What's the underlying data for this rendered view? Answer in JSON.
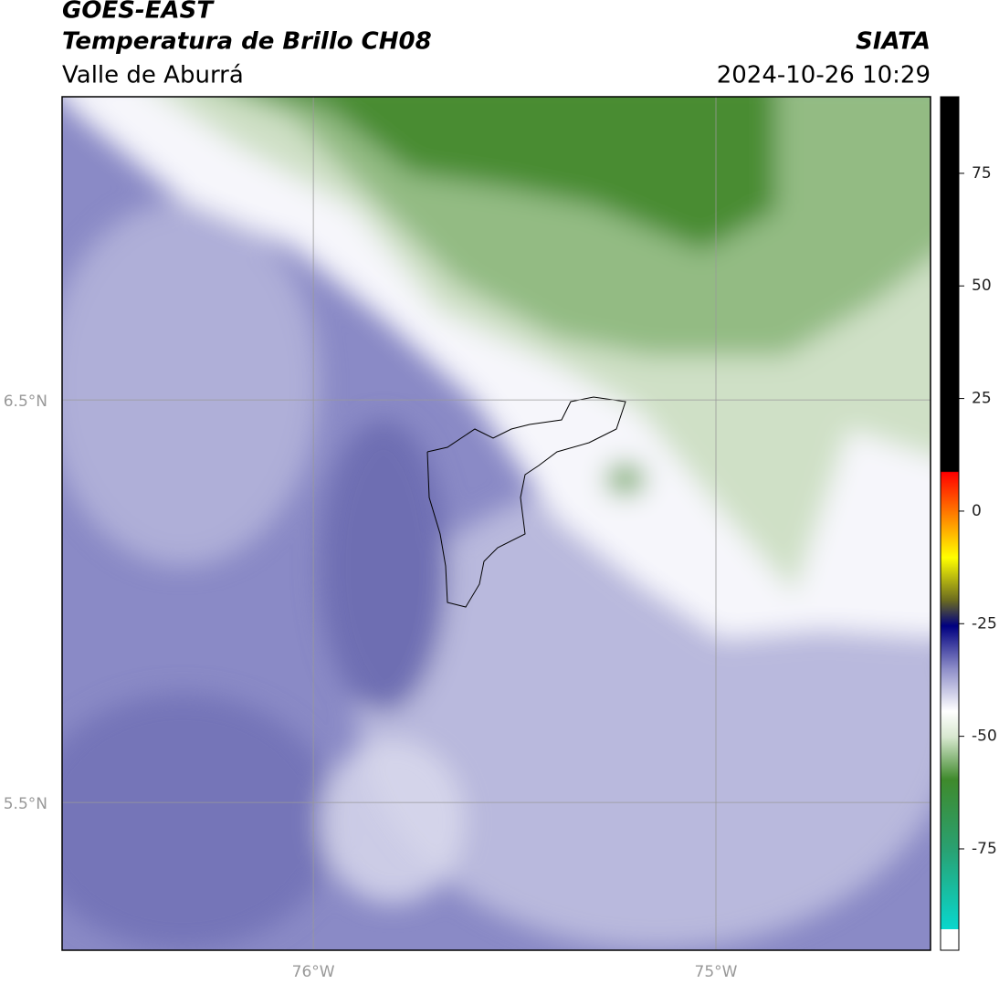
{
  "header": {
    "title": "GOES-EAST",
    "subtitle": "Temperatura de Brillo CH08",
    "region": "Valle de Aburrá",
    "source": "SIATA",
    "timestamp": "2024-10-26 10:29"
  },
  "map": {
    "xlim": [
      -76.624,
      -74.467
    ],
    "ylim": [
      5.133,
      7.253
    ],
    "xticks": [
      {
        "value": -76,
        "label": "76°W"
      },
      {
        "value": -75,
        "label": "75°W"
      }
    ],
    "yticks": [
      {
        "value": 6.5,
        "label": "6.5°N"
      },
      {
        "value": 5.5,
        "label": "5.5°N"
      }
    ]
  },
  "colorbar": {
    "lim": [
      -97.5,
      92
    ],
    "ticks": [
      75,
      50,
      25,
      0,
      -25,
      -50,
      -75
    ]
  }
}
